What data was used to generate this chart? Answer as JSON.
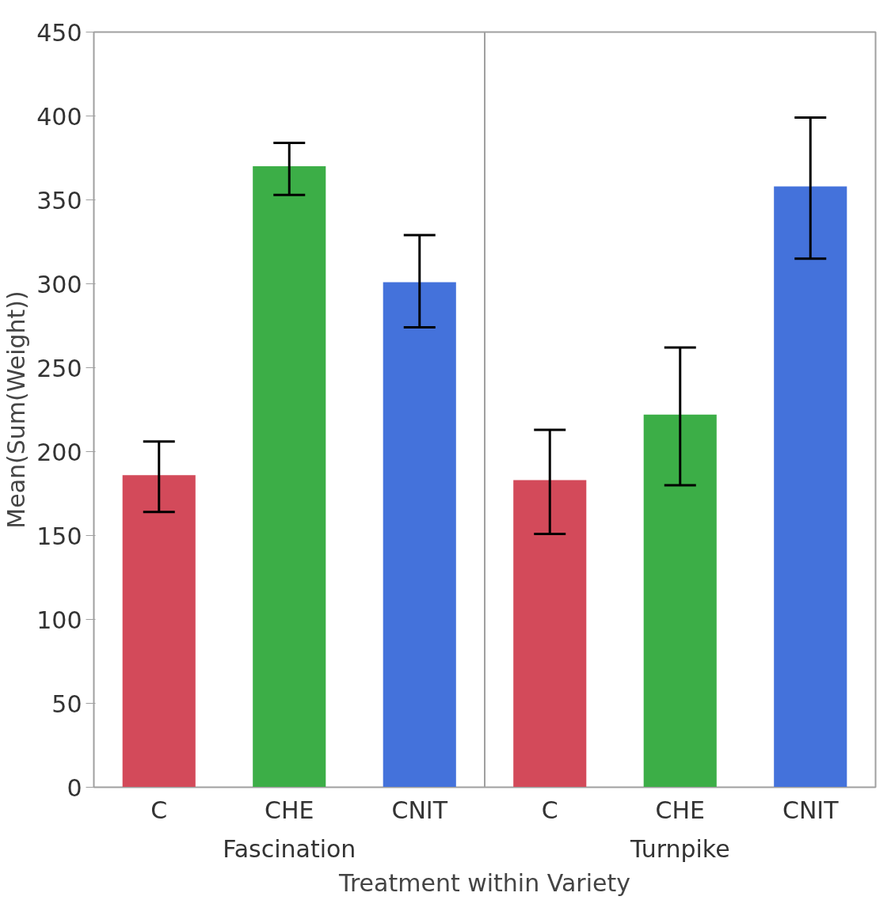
{
  "chart_data": {
    "type": "bar",
    "xlabel": "Treatment within Variety",
    "ylabel": "Mean(Sum(Weight))",
    "categories": [
      "C",
      "CHE",
      "CNIT",
      "C",
      "CHE",
      "CNIT"
    ],
    "values": [
      186,
      370,
      301,
      183,
      222,
      358
    ],
    "colors": [
      "#d34a5a",
      "#3cae47",
      "#4472db",
      "#d34a5a",
      "#3cae47",
      "#4472db"
    ],
    "errors": [
      [
        164,
        206
      ],
      [
        353,
        384
      ],
      [
        274,
        329
      ],
      [
        151,
        213
      ],
      [
        180,
        262
      ],
      [
        315,
        399
      ]
    ],
    "annotations": [
      "Fascination",
      "Turnpike"
    ],
    "ylim": [
      0,
      450
    ],
    "yticks": [
      0,
      50,
      100,
      150,
      200,
      250,
      300,
      350,
      400,
      450
    ],
    "grid": false
  }
}
